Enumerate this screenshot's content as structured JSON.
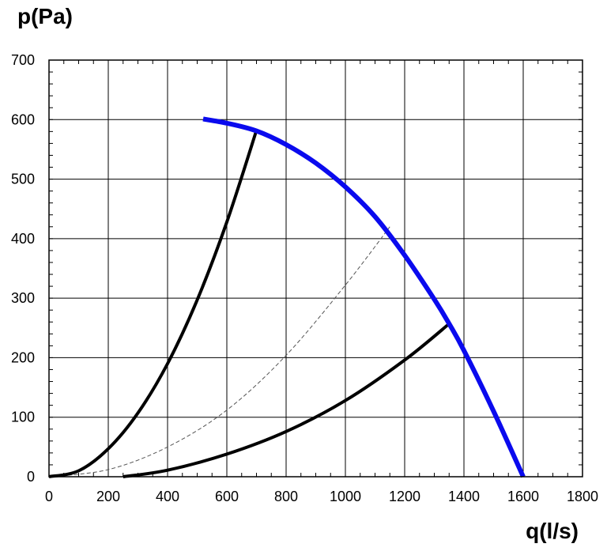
{
  "chart_data": {
    "type": "line",
    "title": "",
    "xlabel": "q(l/s)",
    "ylabel": "p(Pa)",
    "xlim": [
      0,
      1800
    ],
    "ylim": [
      0,
      700
    ],
    "xticks": [
      0,
      200,
      400,
      600,
      800,
      1000,
      1200,
      1400,
      1600,
      1800
    ],
    "yticks": [
      0,
      100,
      200,
      300,
      400,
      500,
      600,
      700
    ],
    "grid": true,
    "legend": "none",
    "colors": {
      "fan_curve": "#0a0aee",
      "system_curve": "#000000",
      "reference_curve": "#555555"
    },
    "series": [
      {
        "style": "fan",
        "x": [
          520,
          600,
          700,
          800,
          900,
          1000,
          1100,
          1200,
          1300,
          1350,
          1400,
          1500,
          1600
        ],
        "y": [
          601,
          594,
          581,
          558,
          527,
          487,
          437,
          372,
          298,
          257,
          212,
          110,
          0
        ]
      },
      {
        "style": "system",
        "x": [
          0,
          100,
          200,
          300,
          400,
          500,
          600,
          700
        ],
        "y": [
          0,
          10,
          47,
          107,
          190,
          297,
          428,
          582
        ]
      },
      {
        "style": "system",
        "x": [
          250,
          400,
          600,
          800,
          1000,
          1200,
          1350
        ],
        "y": [
          0,
          11,
          38,
          76,
          128,
          196,
          257
        ]
      },
      {
        "style": "dashed",
        "x": [
          0,
          200,
          400,
          600,
          800,
          1000,
          1150
        ],
        "y": [
          0,
          12,
          50,
          112,
          204,
          322,
          420
        ]
      }
    ]
  }
}
